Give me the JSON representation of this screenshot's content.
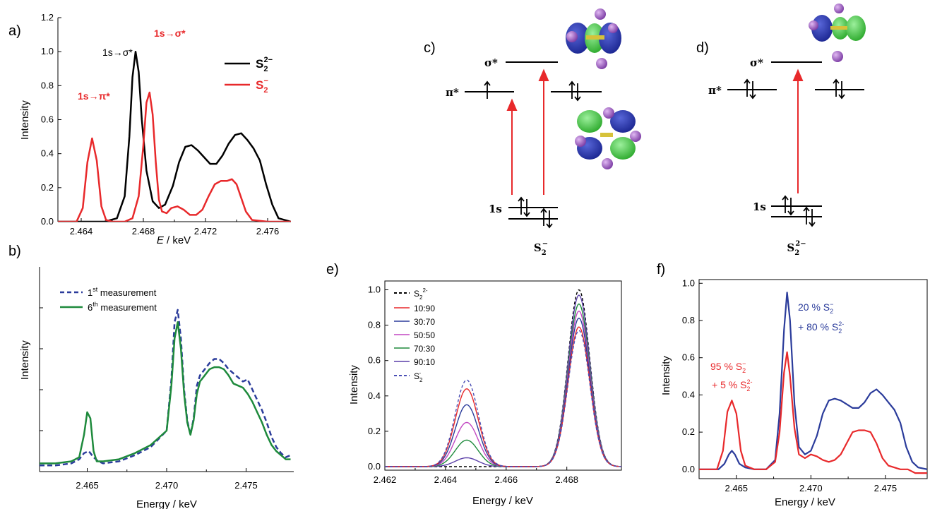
{
  "colors": {
    "black": "#000000",
    "red": "#e8292b",
    "blue": "#2b3c9b",
    "green": "#1e8a3c",
    "orbital_blue": "#2432a8",
    "orbital_green": "#3fc93f",
    "atom_purple": "#9d56c6"
  },
  "chart_data": [
    {
      "id": "a",
      "type": "line",
      "panel_label": "a)",
      "xlabel_italic": "E",
      "xlabel_rest": " / keV",
      "ylabel": "Intensity",
      "xlim": [
        2.4625,
        2.4775
      ],
      "ylim": [
        0.0,
        1.2
      ],
      "xticks": [
        "2.464",
        "2.468",
        "2.472",
        "2.476"
      ],
      "yticks": [
        "0.0",
        "0.2",
        "0.4",
        "0.6",
        "0.8",
        "1.0",
        "1.2"
      ],
      "legend": [
        {
          "base": "S",
          "sub": "2",
          "sup": "2−",
          "color": "#000000"
        },
        {
          "base": "S",
          "sub": "2",
          "sup": "−",
          "color": "#e8292b"
        }
      ],
      "annotations": [
        {
          "text": "1s→σ*",
          "color": "#000000"
        },
        {
          "text": "1s→σ*",
          "color": "#e8292b"
        },
        {
          "text": "1s→π*",
          "color": "#e8292b"
        }
      ],
      "series": [
        {
          "color": "#000000",
          "x": [
            2.4625,
            2.4655,
            2.4663,
            2.4668,
            2.4671,
            2.4673,
            2.4675,
            2.4677,
            2.4679,
            2.4682,
            2.4686,
            2.469,
            2.4694,
            2.4699,
            2.4703,
            2.4707,
            2.4711,
            2.4715,
            2.4719,
            2.4723,
            2.4727,
            2.4731,
            2.4735,
            2.4739,
            2.4743,
            2.4747,
            2.4751,
            2.4755,
            2.4759,
            2.4763,
            2.4767,
            2.4775
          ],
          "y": [
            0.0,
            0.0,
            0.02,
            0.15,
            0.5,
            0.85,
            1.0,
            0.88,
            0.6,
            0.3,
            0.12,
            0.08,
            0.1,
            0.21,
            0.35,
            0.44,
            0.45,
            0.42,
            0.38,
            0.34,
            0.34,
            0.39,
            0.46,
            0.51,
            0.52,
            0.48,
            0.43,
            0.36,
            0.22,
            0.1,
            0.02,
            0.0
          ]
        },
        {
          "color": "#e8292b",
          "x": [
            2.4625,
            2.4637,
            2.4641,
            2.4644,
            2.4647,
            2.465,
            2.4653,
            2.4656,
            2.466,
            2.4668,
            2.4673,
            2.4677,
            2.468,
            2.4682,
            2.4684,
            2.4686,
            2.4688,
            2.469,
            2.4692,
            2.4695,
            2.4698,
            2.4702,
            2.4706,
            2.471,
            2.4714,
            2.4718,
            2.4722,
            2.4726,
            2.473,
            2.4734,
            2.4737,
            2.474,
            2.4743,
            2.4746,
            2.475,
            2.476,
            2.4775
          ],
          "y": [
            0.0,
            0.0,
            0.08,
            0.35,
            0.49,
            0.36,
            0.09,
            0.01,
            0.0,
            0.0,
            0.02,
            0.15,
            0.45,
            0.7,
            0.76,
            0.63,
            0.35,
            0.13,
            0.06,
            0.05,
            0.08,
            0.09,
            0.07,
            0.04,
            0.04,
            0.07,
            0.15,
            0.22,
            0.24,
            0.24,
            0.25,
            0.22,
            0.14,
            0.06,
            0.01,
            0.0,
            0.0
          ]
        }
      ]
    },
    {
      "id": "b",
      "type": "line",
      "panel_label": "b)",
      "xlabel": "Energy / keV",
      "ylabel": "Intensity",
      "xlim": [
        2.462,
        2.478
      ],
      "ylim": [
        0.0,
        1.0
      ],
      "xticks": [
        "2.465",
        "2.470",
        "2.475"
      ],
      "legend": [
        {
          "base": "1",
          "sup": "st",
          "rest": " measurement",
          "color": "#2b3c9b",
          "dash": true
        },
        {
          "base": "6",
          "sup": "th",
          "rest": " measurement",
          "color": "#1e8a3c",
          "dash": false
        }
      ],
      "series": [
        {
          "color": "#2b3c9b",
          "dash": true,
          "x": [
            2.462,
            2.463,
            2.464,
            2.4645,
            2.4648,
            2.4651,
            2.4654,
            2.4657,
            2.466,
            2.467,
            2.468,
            2.469,
            2.47,
            2.4703,
            2.4705,
            2.4707,
            2.4709,
            2.4711,
            2.4713,
            2.4715,
            2.4717,
            2.4719,
            2.4721,
            2.4724,
            2.4727,
            2.473,
            2.4733,
            2.4736,
            2.4739,
            2.4742,
            2.4745,
            2.4748,
            2.4751,
            2.4754,
            2.4757,
            2.476,
            2.4763,
            2.4766,
            2.4769,
            2.4772,
            2.4775,
            2.4778
          ],
          "y": [
            0.03,
            0.03,
            0.04,
            0.06,
            0.09,
            0.1,
            0.07,
            0.05,
            0.04,
            0.05,
            0.08,
            0.12,
            0.2,
            0.45,
            0.73,
            0.79,
            0.65,
            0.4,
            0.25,
            0.18,
            0.26,
            0.42,
            0.47,
            0.5,
            0.53,
            0.55,
            0.55,
            0.53,
            0.5,
            0.48,
            0.46,
            0.44,
            0.45,
            0.4,
            0.35,
            0.3,
            0.24,
            0.17,
            0.12,
            0.09,
            0.07,
            0.08
          ]
        },
        {
          "color": "#1e8a3c",
          "dash": false,
          "x": [
            2.462,
            2.463,
            2.464,
            2.4645,
            2.4648,
            2.465,
            2.4652,
            2.4654,
            2.4656,
            2.466,
            2.467,
            2.468,
            2.469,
            2.47,
            2.4703,
            2.4705,
            2.4707,
            2.4709,
            2.4711,
            2.4713,
            2.4715,
            2.4717,
            2.4719,
            2.4721,
            2.4724,
            2.4727,
            2.473,
            2.4733,
            2.4736,
            2.4739,
            2.4742,
            2.4745,
            2.4748,
            2.4751,
            2.4754,
            2.4757,
            2.476,
            2.4763,
            2.4766,
            2.4769,
            2.4772,
            2.4775,
            2.4778
          ],
          "y": [
            0.04,
            0.04,
            0.05,
            0.07,
            0.18,
            0.29,
            0.26,
            0.1,
            0.05,
            0.05,
            0.06,
            0.09,
            0.13,
            0.2,
            0.42,
            0.65,
            0.73,
            0.6,
            0.38,
            0.24,
            0.18,
            0.25,
            0.38,
            0.44,
            0.47,
            0.5,
            0.51,
            0.51,
            0.5,
            0.47,
            0.43,
            0.42,
            0.41,
            0.38,
            0.34,
            0.29,
            0.24,
            0.18,
            0.13,
            0.1,
            0.08,
            0.06,
            0.06
          ]
        }
      ]
    },
    {
      "id": "e",
      "type": "line",
      "panel_label": "e)",
      "xlabel": "Energy / keV",
      "ylabel": "Intensity",
      "xlim": [
        2.462,
        2.4698
      ],
      "ylim": [
        -0.02,
        1.05
      ],
      "xticks": [
        "2.462",
        "2.464",
        "2.466",
        "2.468"
      ],
      "yticks": [
        "0.0",
        "0.2",
        "0.4",
        "0.6",
        "0.8",
        "1.0"
      ],
      "legend": [
        {
          "base": "S",
          "sub": "2",
          "sup": "2-",
          "color": "#000000",
          "dash": true
        },
        {
          "base": "10:90",
          "color": "#e8292b",
          "dash": false
        },
        {
          "base": "30:70",
          "color": "#2b3c9b",
          "dash": false
        },
        {
          "base": "50:50",
          "color": "#c247c2",
          "dash": false
        },
        {
          "base": "70:30",
          "color": "#1e8a3c",
          "dash": false
        },
        {
          "base": "90:10",
          "color": "#5a3fa8",
          "dash": false
        },
        {
          "base": "S",
          "sub": "2",
          "sup": "-",
          "color": "#4b4fb5",
          "dash": true
        }
      ],
      "peaks": {
        "low": {
          "center": 2.4647,
          "sigma": 0.00038
        },
        "high": {
          "center": 2.4684,
          "sigma": 0.00036
        }
      },
      "series": [
        {
          "label": "S2 2-",
          "color": "#000000",
          "dash": true,
          "low_amp": 0.0,
          "high_amp": 1.0
        },
        {
          "label": "90:10",
          "color": "#5a3fa8",
          "dash": false,
          "low_amp": 0.05,
          "high_amp": 0.97
        },
        {
          "label": "70:30",
          "color": "#1e8a3c",
          "dash": false,
          "low_amp": 0.15,
          "high_amp": 0.92
        },
        {
          "label": "50:50",
          "color": "#c247c2",
          "dash": false,
          "low_amp": 0.25,
          "high_amp": 0.88
        },
        {
          "label": "30:70",
          "color": "#2b3c9b",
          "dash": false,
          "low_amp": 0.35,
          "high_amp": 0.84
        },
        {
          "label": "10:90",
          "color": "#e8292b",
          "dash": false,
          "low_amp": 0.44,
          "high_amp": 0.79
        },
        {
          "label": "S2 -",
          "color": "#4b4fb5",
          "dash": true,
          "low_amp": 0.49,
          "high_amp": 0.77
        }
      ]
    },
    {
      "id": "f",
      "type": "line",
      "panel_label": "f)",
      "xlabel": "Energy / keV",
      "ylabel": "Intensity",
      "xlim": [
        2.4625,
        2.4778
      ],
      "ylim": [
        -0.05,
        1.02
      ],
      "xticks": [
        "2.465",
        "2.470",
        "2.475"
      ],
      "yticks": [
        "0.0",
        "0.2",
        "0.4",
        "0.6",
        "0.8",
        "1.0"
      ],
      "annotations": [
        {
          "line1_a": "20 % S",
          "line1_sub": "2",
          "line1_sup": "−",
          "line2_a": "+ 80 % S",
          "line2_sub": "2",
          "line2_sup": "2-",
          "color": "#2b3c9b"
        },
        {
          "line1_a": "95 % S",
          "line1_sub": "2",
          "line1_sup": "−",
          "line2_a": "+ 5 % S",
          "line2_sub": "2",
          "line2_sup": "2-",
          "color": "#e8292b"
        }
      ],
      "series": [
        {
          "color": "#2b3c9b",
          "x": [
            2.4625,
            2.4638,
            2.4642,
            2.4645,
            2.4647,
            2.4649,
            2.4652,
            2.4656,
            2.4662,
            2.467,
            2.4676,
            2.4679,
            2.4682,
            2.4684,
            2.4686,
            2.4689,
            2.4692,
            2.4696,
            2.47,
            2.4704,
            2.4708,
            2.4712,
            2.4716,
            2.472,
            2.4724,
            2.4728,
            2.4732,
            2.4736,
            2.474,
            2.4744,
            2.4748,
            2.4752,
            2.4756,
            2.476,
            2.4764,
            2.4768,
            2.4772,
            2.4778
          ],
          "y": [
            0.0,
            0.0,
            0.03,
            0.08,
            0.1,
            0.08,
            0.03,
            0.01,
            0.0,
            0.0,
            0.05,
            0.3,
            0.75,
            0.95,
            0.8,
            0.35,
            0.12,
            0.08,
            0.1,
            0.18,
            0.3,
            0.37,
            0.38,
            0.37,
            0.35,
            0.33,
            0.33,
            0.36,
            0.41,
            0.43,
            0.4,
            0.36,
            0.32,
            0.25,
            0.12,
            0.04,
            0.01,
            0.0
          ]
        },
        {
          "color": "#e8292b",
          "x": [
            2.4625,
            2.4637,
            2.4641,
            2.4644,
            2.4647,
            2.465,
            2.4653,
            2.4656,
            2.4662,
            2.467,
            2.4676,
            2.4679,
            2.4682,
            2.4684,
            2.4686,
            2.4689,
            2.4692,
            2.4696,
            2.47,
            2.4704,
            2.4708,
            2.4712,
            2.4716,
            2.472,
            2.4724,
            2.4728,
            2.4732,
            2.4736,
            2.474,
            2.4744,
            2.4748,
            2.4752,
            2.4756,
            2.476,
            2.4765,
            2.477,
            2.4778
          ],
          "y": [
            0.0,
            0.0,
            0.1,
            0.31,
            0.37,
            0.3,
            0.1,
            0.02,
            0.0,
            0.0,
            0.04,
            0.2,
            0.52,
            0.63,
            0.5,
            0.22,
            0.08,
            0.06,
            0.08,
            0.07,
            0.05,
            0.04,
            0.05,
            0.08,
            0.14,
            0.2,
            0.21,
            0.21,
            0.2,
            0.14,
            0.06,
            0.02,
            0.01,
            0.0,
            0.0,
            -0.02,
            -0.02
          ]
        }
      ]
    }
  ],
  "diagram_c": {
    "panel_label": "c)",
    "levels": {
      "sigma_star": "σ*",
      "pi_star": "π*",
      "one_s": "1s"
    },
    "species": {
      "base": "S",
      "sub": "2",
      "sup": "−"
    }
  },
  "diagram_d": {
    "panel_label": "d)",
    "levels": {
      "sigma_star": "σ*",
      "pi_star": "π*",
      "one_s": "1s"
    },
    "species": {
      "base": "S",
      "sub": "2",
      "sup": "2−"
    }
  }
}
